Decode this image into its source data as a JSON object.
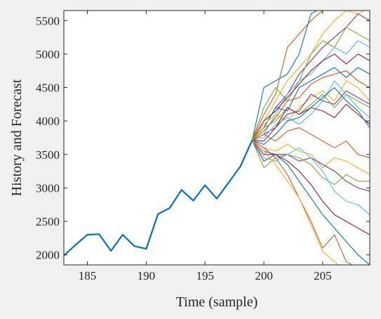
{
  "chart_data": {
    "type": "line",
    "title": "",
    "xlabel": "Time (sample)",
    "ylabel": "History and Forecast",
    "xlim": [
      183,
      209
    ],
    "ylim": [
      1850,
      5650
    ],
    "xticks": [
      185,
      190,
      195,
      200,
      205
    ],
    "yticks": [
      2000,
      2500,
      3000,
      3500,
      4000,
      4500,
      5000,
      5500
    ],
    "grid": false,
    "legend": "none",
    "colors": {
      "background": "#f0f0f0",
      "plot_area": "#ffffff",
      "axis": "#262626",
      "history": "#0072bd",
      "forecast_palette": [
        "#0072bd",
        "#d95319",
        "#edb120",
        "#7e2f8e",
        "#77ac30",
        "#4dbeee",
        "#a2142f"
      ]
    },
    "history": {
      "x": [
        183,
        184,
        185,
        186,
        187,
        188,
        189,
        190,
        191,
        192,
        193,
        194,
        195,
        196,
        197,
        198,
        199
      ],
      "y": [
        1990,
        2150,
        2300,
        2310,
        2060,
        2300,
        2130,
        2090,
        2610,
        2700,
        2970,
        2810,
        3040,
        2840,
        3080,
        3320,
        3710
      ]
    },
    "forecast_x": [
      199,
      200,
      201,
      202,
      203,
      204,
      205,
      206,
      207,
      208,
      209
    ],
    "forecast_paths": [
      [
        3710,
        4500,
        4600,
        4700,
        5000,
        5600,
        5700,
        5800,
        5850,
        5900,
        5950
      ],
      [
        3710,
        4100,
        4400,
        5100,
        5300,
        5500,
        5650,
        5750,
        5800,
        5850,
        5900
      ],
      [
        3710,
        4000,
        4300,
        4600,
        4800,
        5000,
        5300,
        5500,
        5650,
        5600,
        5700
      ],
      [
        3710,
        3900,
        4200,
        4400,
        4700,
        4900,
        5100,
        5250,
        5400,
        5600,
        5500
      ],
      [
        3710,
        4200,
        4500,
        4300,
        4600,
        5000,
        5200,
        5100,
        5400,
        5300,
        5200
      ],
      [
        3710,
        3800,
        4100,
        4400,
        4600,
        4700,
        4900,
        5100,
        5000,
        5200,
        5100
      ],
      [
        3710,
        4000,
        4150,
        4350,
        4550,
        4750,
        4900,
        5000,
        4850,
        5000,
        4900
      ],
      [
        3710,
        3900,
        4200,
        4150,
        4500,
        4600,
        4700,
        4800,
        4650,
        4800,
        4700
      ],
      [
        3710,
        3850,
        4050,
        4300,
        4350,
        4550,
        4650,
        4700,
        4750,
        4600,
        4500
      ],
      [
        3710,
        3950,
        4100,
        4000,
        4200,
        4350,
        4450,
        4300,
        4600,
        4500,
        4300
      ],
      [
        3710,
        3800,
        3900,
        4100,
        4150,
        4400,
        4300,
        4250,
        4450,
        4350,
        4250
      ],
      [
        3710,
        3900,
        4000,
        4200,
        4100,
        4250,
        4400,
        4200,
        4400,
        4300,
        4200
      ],
      [
        3710,
        3750,
        3950,
        4050,
        3950,
        4100,
        4300,
        4600,
        4400,
        4200,
        4050
      ],
      [
        3710,
        3700,
        3900,
        4200,
        4100,
        4200,
        4150,
        4050,
        4250,
        4100,
        3950
      ],
      [
        3710,
        3650,
        3800,
        4000,
        4050,
        4200,
        4350,
        4500,
        4300,
        4150,
        3900
      ],
      [
        3710,
        3800,
        3700,
        3850,
        3900,
        3800,
        3700,
        3600,
        3700,
        3500,
        3450
      ],
      [
        3710,
        3600,
        3550,
        3650,
        3550,
        3500,
        3300,
        3450,
        3400,
        3300,
        3200
      ],
      [
        3710,
        3400,
        3500,
        3500,
        3400,
        3450,
        3350,
        3250,
        3100,
        3000,
        2950
      ],
      [
        3710,
        3300,
        3450,
        3500,
        3450,
        3350,
        3150,
        3050,
        3200,
        3100,
        3100
      ],
      [
        3710,
        3450,
        3400,
        3500,
        3600,
        3450,
        3250,
        2950,
        2800,
        2750,
        2600
      ],
      [
        3710,
        3500,
        3500,
        3400,
        3250,
        3050,
        2800,
        2600,
        2500,
        2400,
        2300
      ],
      [
        3710,
        3550,
        3500,
        3350,
        3100,
        2850,
        2600,
        2400,
        2200,
        2000,
        1850
      ],
      [
        3710,
        3600,
        3450,
        3200,
        2850,
        2500,
        2100,
        2300,
        1900,
        1800,
        1700
      ],
      [
        3710,
        3550,
        3350,
        3100,
        2850,
        2450,
        2050,
        1900,
        1750,
        1700,
        1650
      ]
    ]
  }
}
